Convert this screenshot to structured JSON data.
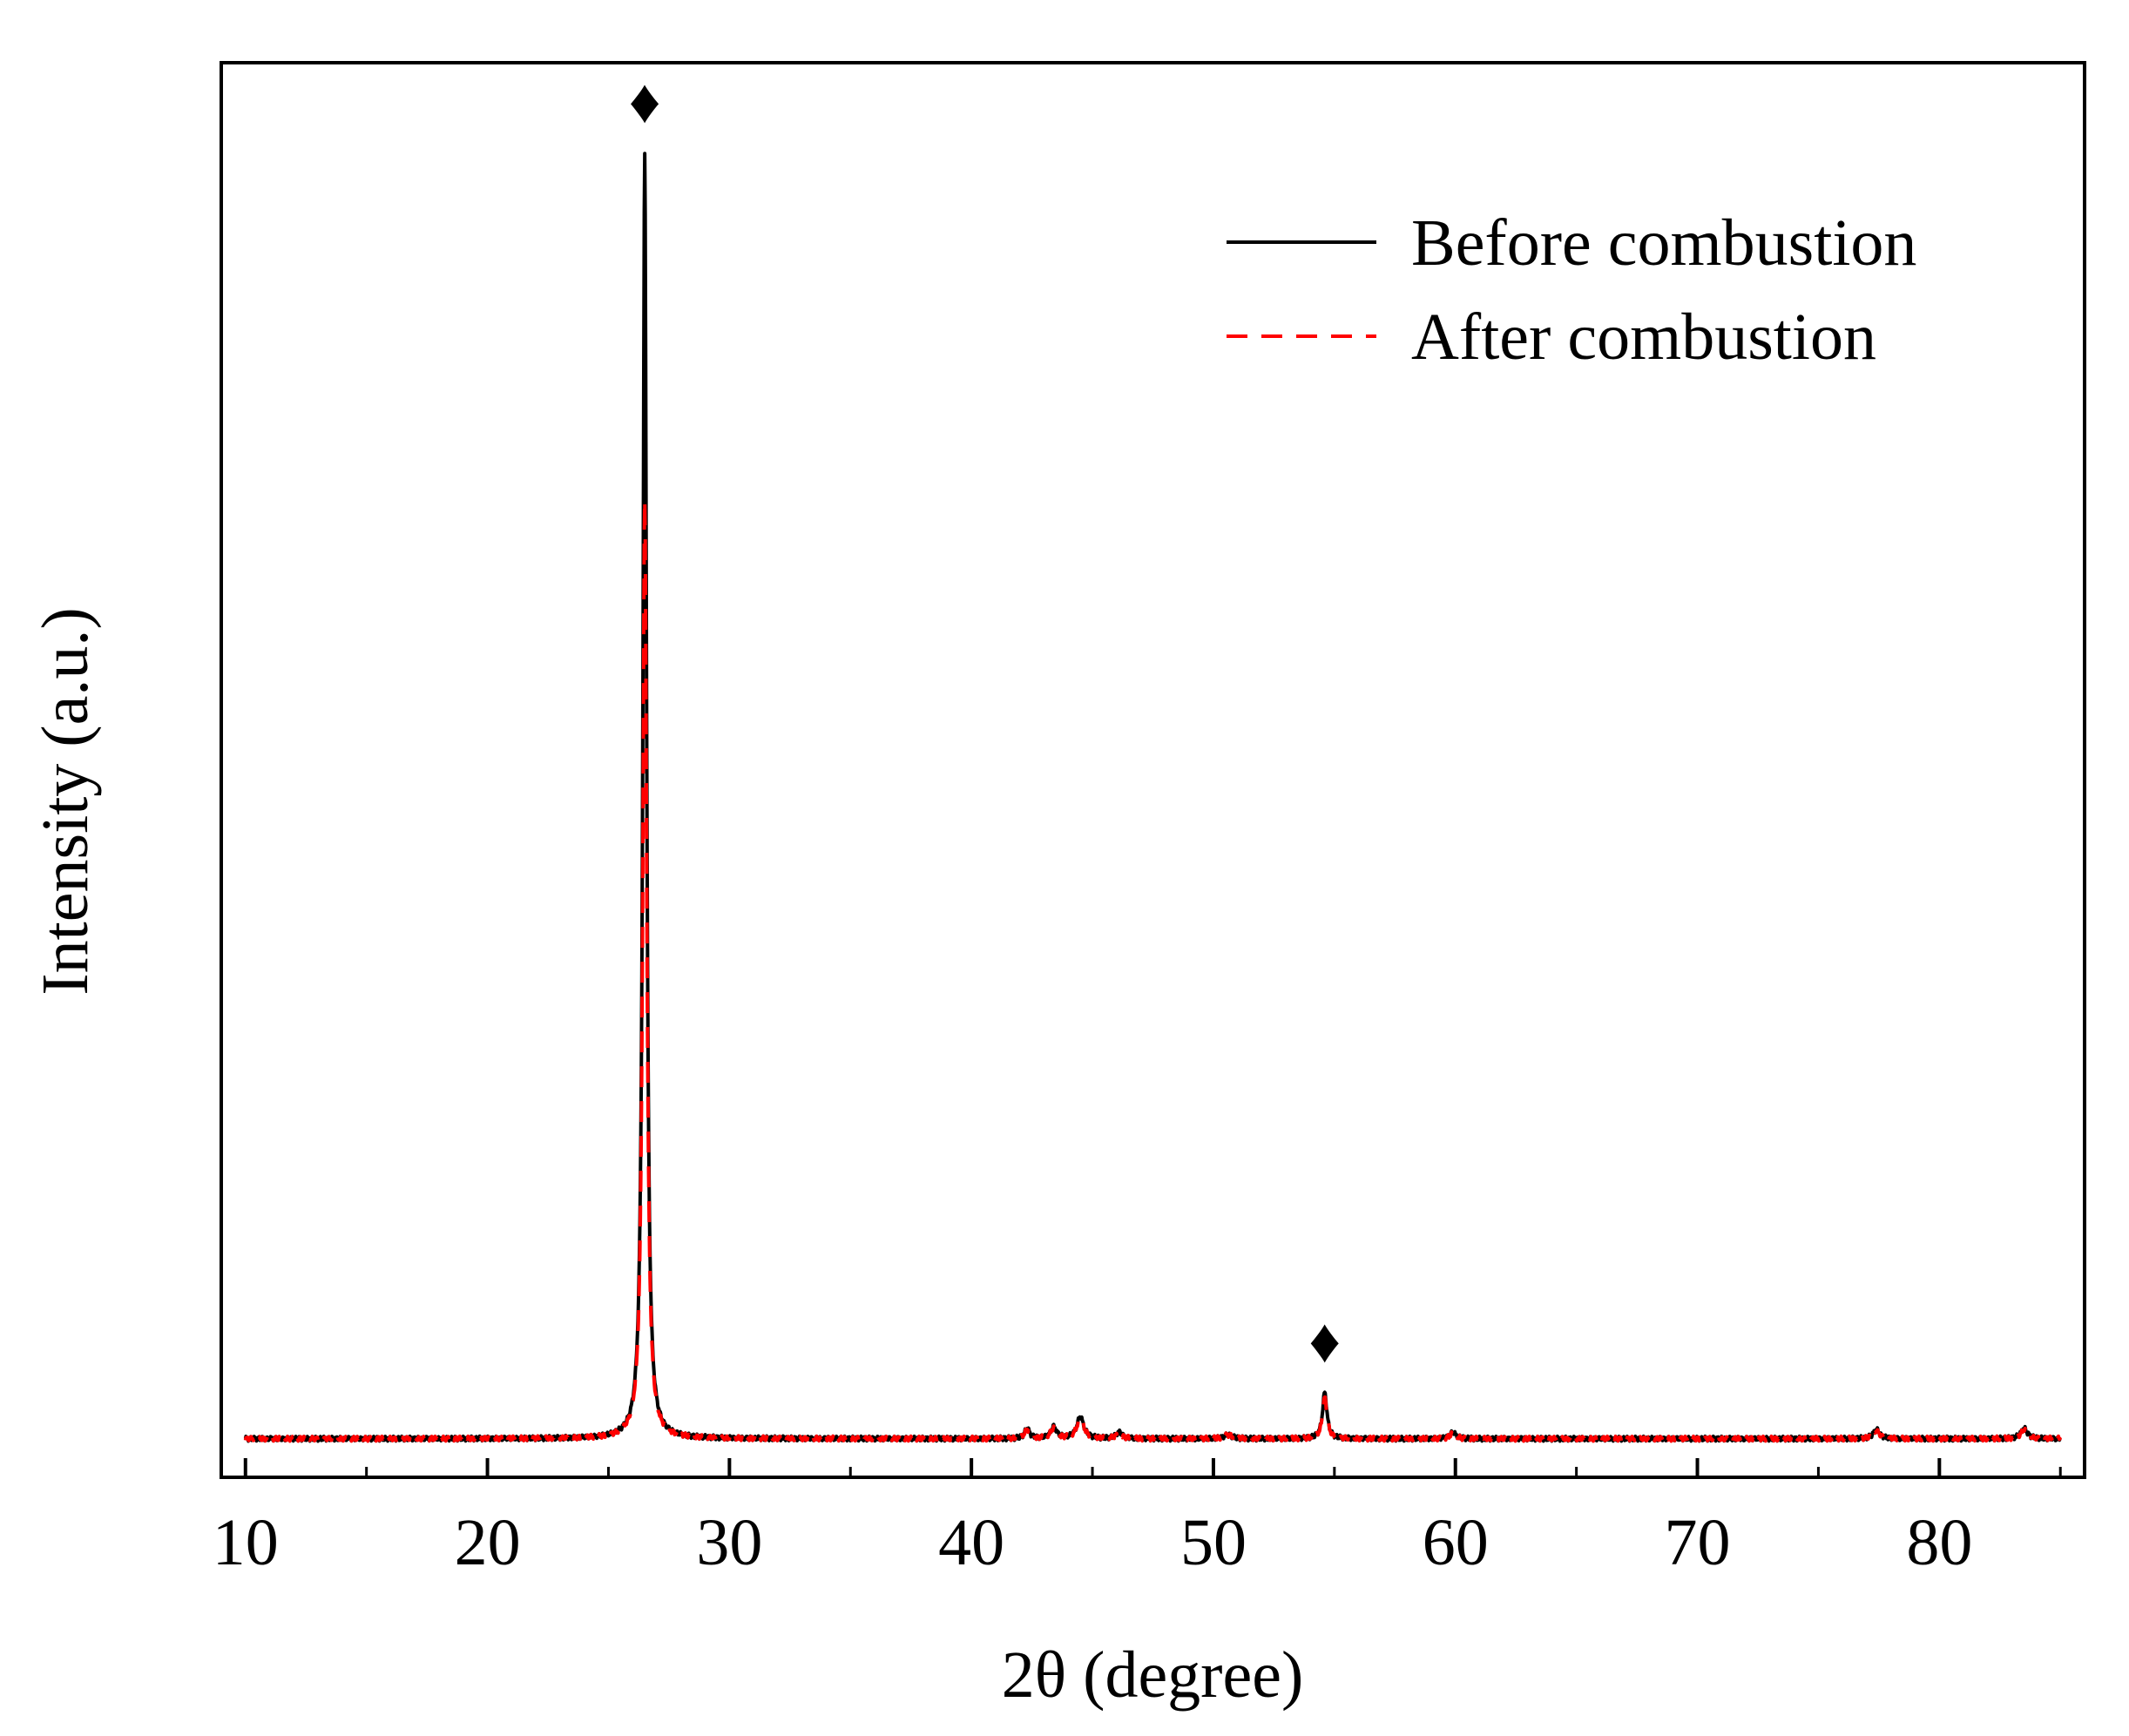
{
  "chart_data": {
    "type": "line",
    "title": "",
    "xlabel": "2θ (degree)",
    "ylabel": "Intensity (a.u.)",
    "xlim": [
      9,
      86
    ],
    "ylim": [
      -0.03,
      1.07
    ],
    "x_ticks": [
      10,
      20,
      30,
      40,
      50,
      60,
      70,
      80
    ],
    "x_tick_labels": [
      "10",
      "20",
      "30",
      "40",
      "50",
      "60",
      "70",
      "80"
    ],
    "y_ticks_shown": false,
    "grid": false,
    "legend_position": "top-right",
    "series": [
      {
        "name": "Before combustion",
        "color": "#000000",
        "style": "solid",
        "baseline": 0.0,
        "peaks": [
          {
            "x": 26.5,
            "height": 1.0,
            "width": 0.09
          },
          {
            "x": 42.3,
            "height": 0.008,
            "width": 0.12
          },
          {
            "x": 43.4,
            "height": 0.009,
            "width": 0.15
          },
          {
            "x": 44.5,
            "height": 0.017,
            "width": 0.17
          },
          {
            "x": 46.1,
            "height": 0.005,
            "width": 0.15
          },
          {
            "x": 50.6,
            "height": 0.003,
            "width": 0.2
          },
          {
            "x": 54.6,
            "height": 0.036,
            "width": 0.11
          },
          {
            "x": 59.9,
            "height": 0.005,
            "width": 0.15
          },
          {
            "x": 77.4,
            "height": 0.007,
            "width": 0.16
          },
          {
            "x": 83.5,
            "height": 0.008,
            "width": 0.16
          }
        ]
      },
      {
        "name": "After combustion",
        "color": "#ff0000",
        "style": "dashed",
        "baseline": 0.0,
        "peaks": [
          {
            "x": 26.5,
            "height": 0.73,
            "width": 0.1
          },
          {
            "x": 42.3,
            "height": 0.007,
            "width": 0.12
          },
          {
            "x": 43.4,
            "height": 0.008,
            "width": 0.15
          },
          {
            "x": 44.5,
            "height": 0.016,
            "width": 0.17
          },
          {
            "x": 46.1,
            "height": 0.004,
            "width": 0.15
          },
          {
            "x": 50.6,
            "height": 0.003,
            "width": 0.2
          },
          {
            "x": 54.6,
            "height": 0.032,
            "width": 0.11
          },
          {
            "x": 59.9,
            "height": 0.004,
            "width": 0.15
          },
          {
            "x": 77.4,
            "height": 0.006,
            "width": 0.16
          },
          {
            "x": 83.5,
            "height": 0.007,
            "width": 0.16
          }
        ]
      }
    ],
    "annotations": [
      {
        "type": "diamond-marker",
        "symbol": "♦",
        "x": 26.5,
        "y": 1.04
      },
      {
        "type": "diamond-marker",
        "symbol": "♦",
        "x": 54.6,
        "y": 0.076
      }
    ]
  }
}
